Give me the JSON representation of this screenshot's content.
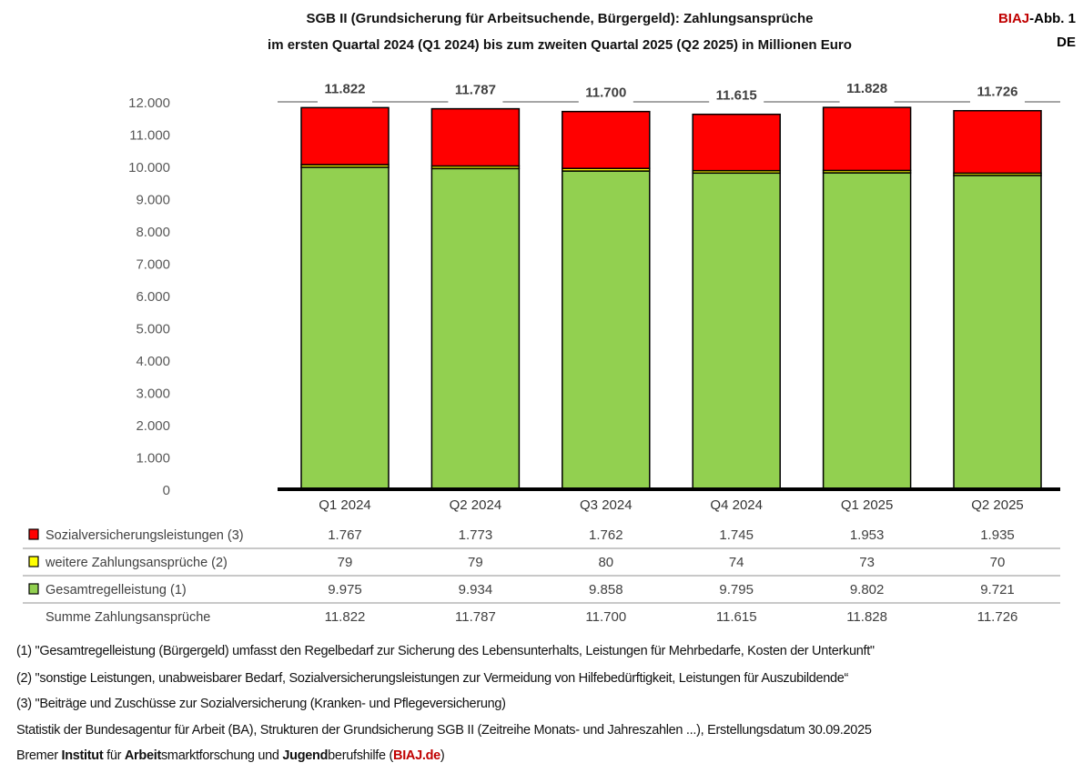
{
  "title_line1": "SGB II (Grundsicherung für Arbeitsuchende, Bürgergeld): Zahlungsansprüche",
  "title_line2": "im ersten Quartal 2024 (Q1 2024) bis zum zweiten Quartal 2025 (Q2 2025) in Millionen Euro",
  "badge": {
    "brand": "BIAJ",
    "rest": "-Abb. 1",
    "region": "DE"
  },
  "chart_data": {
    "type": "bar",
    "stacked": true,
    "categories": [
      "Q1 2024",
      "Q2 2024",
      "Q3 2024",
      "Q4 2024",
      "Q1 2025",
      "Q2 2025"
    ],
    "ylim": [
      0,
      12000
    ],
    "yticks": [
      "0",
      "1.000",
      "2.000",
      "3.000",
      "4.000",
      "5.000",
      "6.000",
      "7.000",
      "8.000",
      "9.000",
      "10.000",
      "11.000",
      "12.000"
    ],
    "series": [
      {
        "name": "Gesamtregelleistung (1)",
        "color": "#92D050",
        "values": [
          9975,
          9934,
          9858,
          9795,
          9802,
          9721
        ],
        "labels": [
          "9.975",
          "9.934",
          "9.858",
          "9.795",
          "9.802",
          "9.721"
        ]
      },
      {
        "name": "weitere Zahlungsansprüche (2)",
        "color": "#FFFF00",
        "values": [
          79,
          79,
          80,
          74,
          73,
          70
        ],
        "labels": [
          "79",
          "79",
          "80",
          "74",
          "73",
          "70"
        ]
      },
      {
        "name": "Sozialversicherungsleistungen (3)",
        "color": "#FF0000",
        "values": [
          1767,
          1773,
          1762,
          1745,
          1953,
          1935
        ],
        "labels": [
          "1.767",
          "1.773",
          "1.762",
          "1.745",
          "1.953",
          "1.935"
        ]
      }
    ],
    "totals": {
      "name": "Summe Zahlungsansprüche",
      "values": [
        11822,
        11787,
        11700,
        11615,
        11828,
        11726
      ],
      "labels": [
        "11.822",
        "11.787",
        "11.700",
        "11.615",
        "11.828",
        "11.726"
      ]
    }
  },
  "footnotes": [
    "(1) \"Gesamtregelleistung (Bürgergeld) umfasst den Regelbedarf zur Sicherung des Lebensunterhalts, Leistungen für Mehrbedarfe,  Kosten der Unterkunft\"",
    "(2) \"sonstige Leistungen, unabweisbarer Bedarf, Sozialversicherungsleistungen zur Vermeidung von Hilfebedürftigkeit, Leistungen für Auszubildende“",
    "(3) \"Beiträge und Zuschüsse zur Sozialversicherung (Kranken- und Pflegeversicherung)",
    "Statistik der Bundesagentur für Arbeit (BA), Strukturen der Grundsicherung SGB II (Zeitreihe Monats- und Jahreszahlen ...), Erstellungsdatum 30.09.2025"
  ],
  "credit": {
    "p1": "Bremer ",
    "b1": "Institut",
    "p2": " für ",
    "b2": "Arbeit",
    "p3": "smarktforschung und ",
    "b3": "Jugend",
    "p4": "berufshilfe (",
    "link": "BIAJ.de",
    "p5": ")"
  },
  "colors": {
    "brand": "#C00000"
  }
}
